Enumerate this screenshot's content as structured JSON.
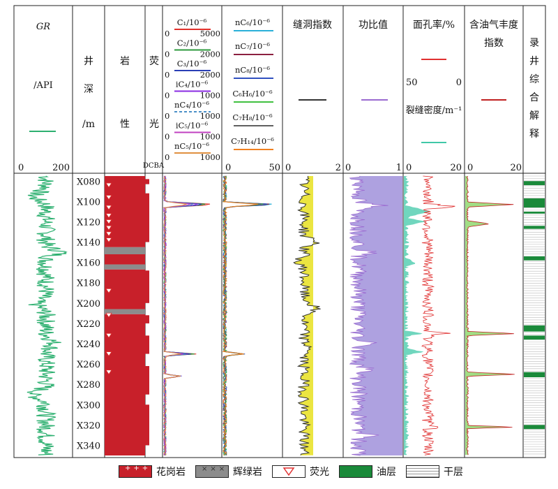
{
  "tracks": {
    "gr": {
      "title": "GR",
      "unit": "/API",
      "scale_min": "0",
      "scale_max": "200",
      "color": "#2db070"
    },
    "depth": {
      "chars": [
        "井",
        "深",
        "/m"
      ]
    },
    "lith": {
      "chars": [
        "岩",
        "性"
      ]
    },
    "fluor": {
      "chars": [
        "荧",
        "光"
      ],
      "grades": "DCBA"
    },
    "gas1": {
      "entries": [
        {
          "label": "C₁/10⁻⁶",
          "min": "0",
          "max": "5000",
          "color": "#e0302a"
        },
        {
          "label": "C₂/10⁻⁶",
          "min": "0",
          "max": "2000",
          "color": "#2e9a3c"
        },
        {
          "label": "C₃/10⁻⁶",
          "min": "0",
          "max": "2000",
          "color": "#2a3fb5"
        },
        {
          "label": "iC₄/10⁻⁶",
          "min": "0",
          "max": "1000",
          "color": "#8a2be2"
        },
        {
          "label": "nC₄/10⁻⁶",
          "min": "0",
          "max": "1000",
          "color": "#4a90c8"
        },
        {
          "label": "iC₅/10⁻⁶",
          "min": "0",
          "max": "1000",
          "color": "#c040c0"
        },
        {
          "label": "nC₅/10⁻⁶",
          "min": "0",
          "max": "1000",
          "color": "#e09040"
        }
      ]
    },
    "gas2": {
      "entries": [
        {
          "label": "nC₆/10⁻⁶",
          "color": "#2ab0d8"
        },
        {
          "label": "nC₇/10⁻⁶",
          "color": "#8b2040"
        },
        {
          "label": "nC₈/10⁻⁶",
          "color": "#3050c0"
        },
        {
          "label": "C₆H₆/10⁻⁶",
          "color": "#40c040"
        },
        {
          "label": "C₇H₈/10⁻⁶",
          "color": "#606060"
        },
        {
          "label": "C₇H₁₄/10⁻⁶",
          "color": "#f08020"
        }
      ],
      "scale_min": "0",
      "scale_max": "50"
    },
    "vug": {
      "title": "缝洞指数",
      "scale_min": "0",
      "scale_max": "2",
      "color": "#333333",
      "fill": "#e8e020"
    },
    "power": {
      "title": "功比值",
      "scale_min": "0",
      "scale_max": "1",
      "color": "#9a6ad0",
      "fill": "#9a8ad8"
    },
    "porosity": {
      "title": "面孔率/%",
      "scale_left": "50",
      "scale_right": "0",
      "color": "#e03030",
      "title2": "裂缝密度/m⁻¹",
      "scale2_min": "0",
      "scale2_max": "20",
      "color2": "#40c8a8"
    },
    "oil": {
      "title_line1": "含油气丰度",
      "title_line2": "指数",
      "scale_min": "0",
      "scale_max": "20",
      "color": "#c02020",
      "fill": "#90d870"
    },
    "interp": {
      "chars": [
        "录",
        "井",
        "综",
        "合",
        "解",
        "释"
      ]
    }
  },
  "depth_labels": [
    "X080",
    "X100",
    "X120",
    "X140",
    "X160",
    "X180",
    "X200",
    "X220",
    "X240",
    "X260",
    "X280",
    "X300",
    "X320",
    "X340"
  ],
  "legend": [
    {
      "name": "granite",
      "label": "花岗岩"
    },
    {
      "name": "diabase",
      "label": "辉绿岩"
    },
    {
      "name": "fluorescence",
      "label": "荧光"
    },
    {
      "name": "oil-layer",
      "label": "油层"
    },
    {
      "name": "dry-layer",
      "label": "干层"
    }
  ],
  "colors": {
    "granite": "#c8202a",
    "diabase": "#8c8c8c",
    "oil": "#1a8a3a",
    "fluor_mark": "#e03030"
  },
  "chart_data": {
    "type": "line",
    "depth_range": [
      75,
      350
    ],
    "lithology": [
      {
        "from": 75,
        "to": 145,
        "type": "granite"
      },
      {
        "from": 145,
        "to": 152,
        "type": "diabase"
      },
      {
        "from": 152,
        "to": 162,
        "type": "granite"
      },
      {
        "from": 162,
        "to": 167,
        "type": "diabase"
      },
      {
        "from": 167,
        "to": 206,
        "type": "granite"
      },
      {
        "from": 206,
        "to": 211,
        "type": "diabase"
      },
      {
        "from": 211,
        "to": 350,
        "type": "granite"
      }
    ],
    "interpretation_oil_layers": [
      [
        80,
        84
      ],
      [
        97,
        106
      ],
      [
        110,
        112
      ],
      [
        124,
        127
      ],
      [
        154,
        158
      ],
      [
        222,
        228
      ],
      [
        232,
        236
      ],
      [
        268,
        273
      ],
      [
        320,
        324
      ]
    ]
  }
}
